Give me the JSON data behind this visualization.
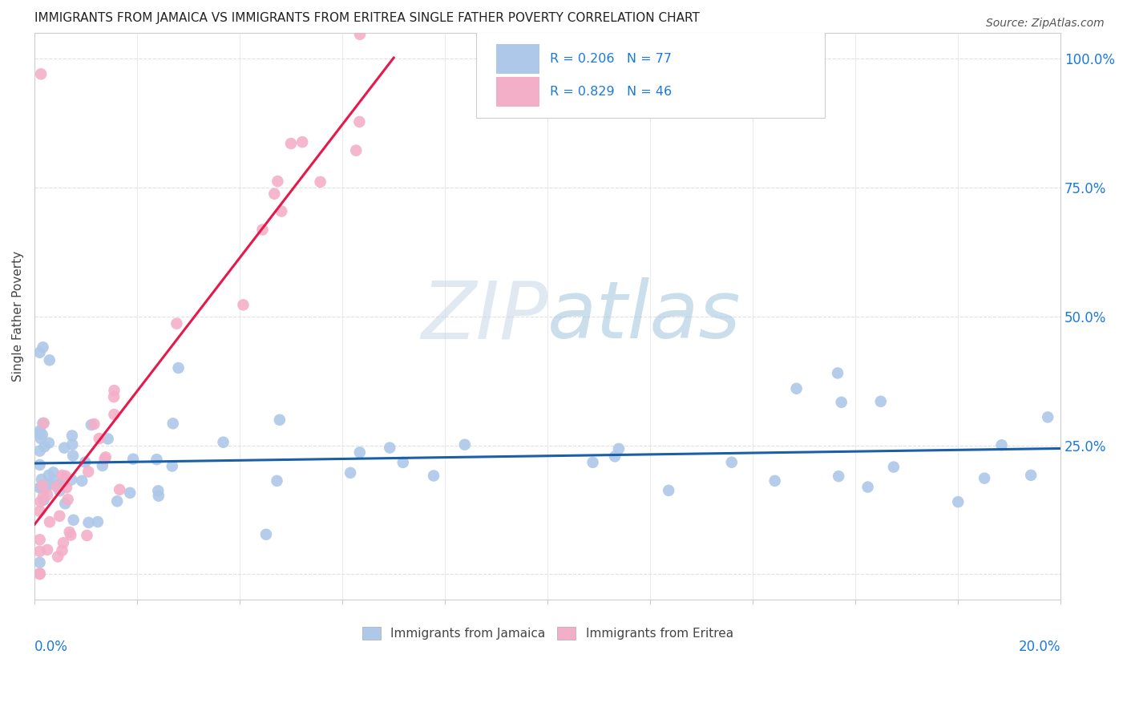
{
  "title": "IMMIGRANTS FROM JAMAICA VS IMMIGRANTS FROM ERITREA SINGLE FATHER POVERTY CORRELATION CHART",
  "source": "Source: ZipAtlas.com",
  "ylabel": "Single Father Poverty",
  "ylim": [
    -0.05,
    1.05
  ],
  "xlim": [
    0.0,
    0.2
  ],
  "jamaica_R": 0.206,
  "jamaica_N": 77,
  "eritrea_R": 0.829,
  "eritrea_N": 46,
  "jamaica_color": "#adc8e8",
  "eritrea_color": "#f4afc8",
  "jamaica_line_color": "#1a5fa8",
  "eritrea_line_color": "#e8184a",
  "legend_color": "#1a7adc",
  "watermark_color": "#d4e8f5",
  "background_color": "#ffffff",
  "grid_color": "#e0e0e0",
  "spine_color": "#cccccc"
}
